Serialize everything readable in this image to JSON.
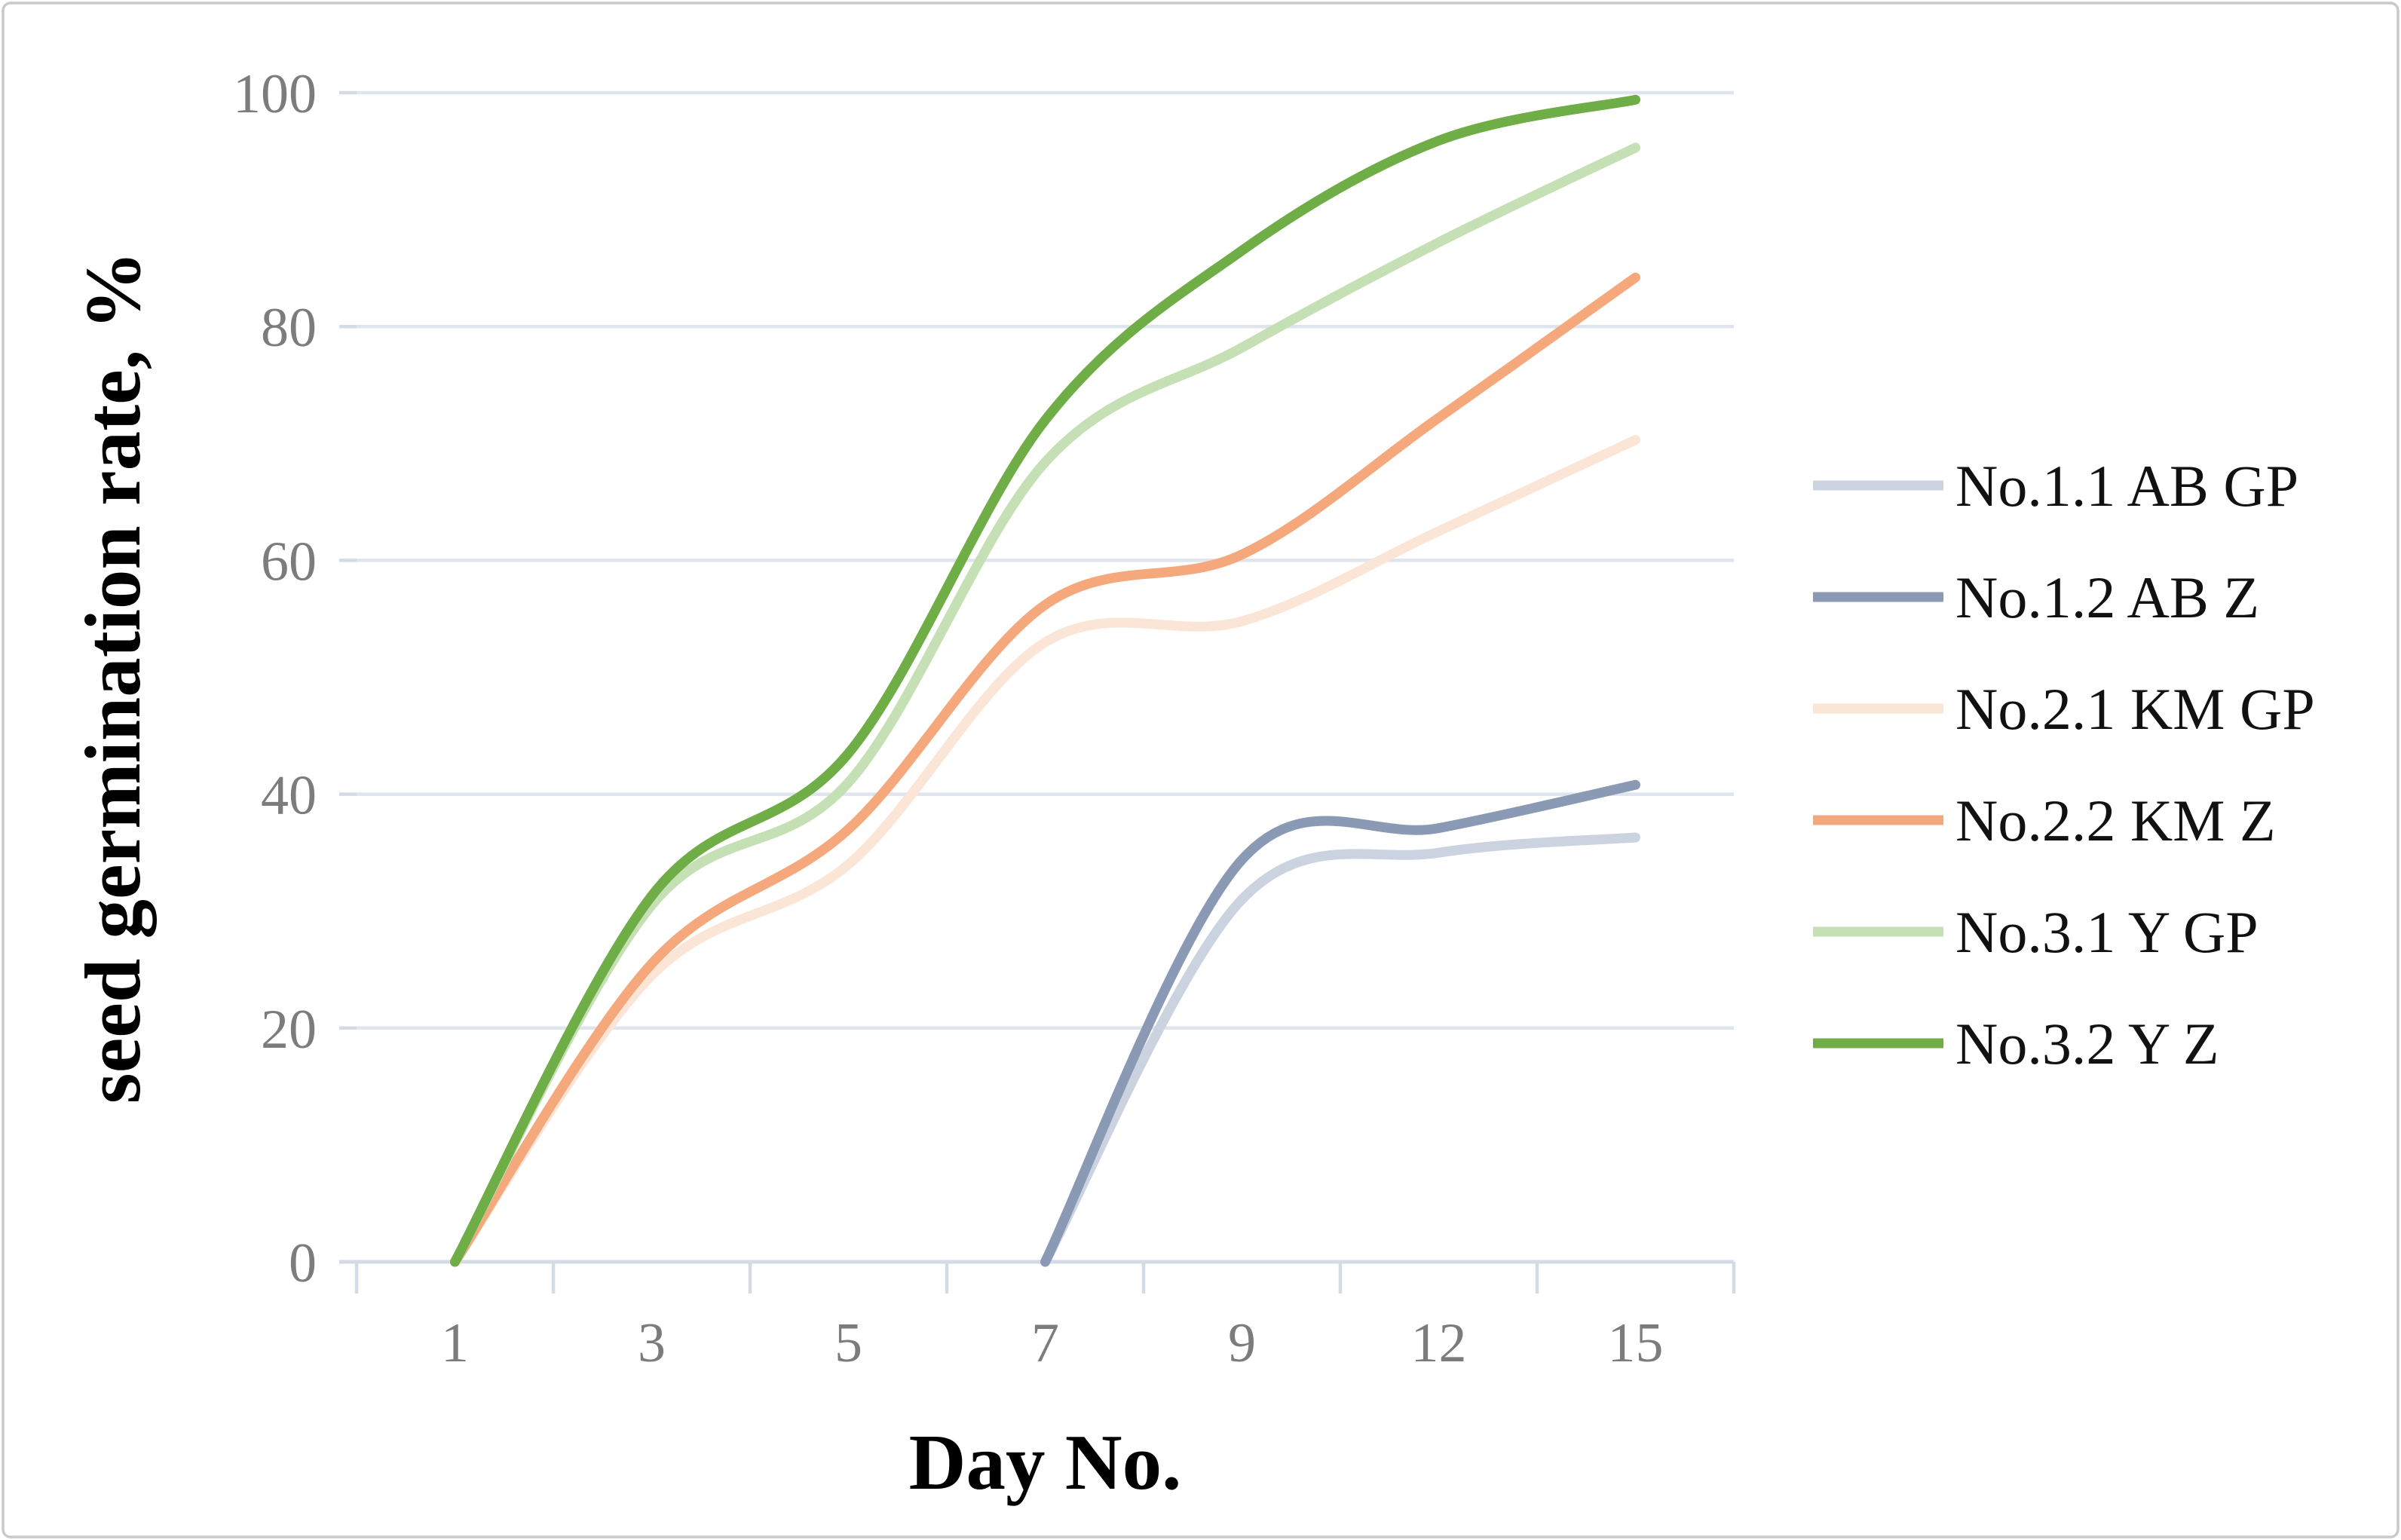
{
  "chart_data": {
    "type": "line",
    "smoothed": true,
    "title": "",
    "x_label": "Day No.",
    "y_label": "seed germination rate, %",
    "categories": [
      "1",
      "3",
      "5",
      "7",
      "9",
      "12",
      "15"
    ],
    "y_ticks": [
      0,
      20,
      40,
      60,
      80,
      100
    ],
    "y_tick_labels": [
      "0",
      "20",
      "40",
      "60",
      "80",
      "100"
    ],
    "ylim": [
      0,
      100
    ],
    "grid": "horizontal",
    "legend_position": "right",
    "series": [
      {
        "name": "No.1.1 AB GP",
        "color": "#cad3df",
        "values": [
          null,
          null,
          null,
          0,
          31.0,
          35.0,
          36.3
        ]
      },
      {
        "name": "No.1.2 AB Z",
        "color": "#8a99b4",
        "values": [
          null,
          null,
          null,
          0,
          34.4,
          37.1,
          40.8
        ]
      },
      {
        "name": "No.2.1 KM GP",
        "color": "#fbe5d6",
        "values": [
          0,
          24.5,
          34.0,
          53.0,
          54.8,
          62.5,
          70.3
        ]
      },
      {
        "name": "No.2.2 KM Z",
        "color": "#f4a87c",
        "values": [
          0,
          25.5,
          37.0,
          56.2,
          60.5,
          72.2,
          84.2
        ]
      },
      {
        "name": "No.3.1 Y GP",
        "color": "#c5e0b4",
        "values": [
          0,
          30.5,
          41.0,
          68.4,
          78.2,
          87.2,
          95.3
        ]
      },
      {
        "name": "No.3.2 Y Z",
        "color": "#6fad47",
        "values": [
          0,
          31.3,
          43.5,
          72.0,
          86.5,
          95.9,
          99.4
        ]
      }
    ],
    "colors": {
      "gridline": "#dfe4ed",
      "axis": "#d4dbe6",
      "tick_label": "#7c7c7c",
      "axis_title": "#000000",
      "frame_border": "#c7c9cc",
      "background": "#ffffff"
    }
  }
}
